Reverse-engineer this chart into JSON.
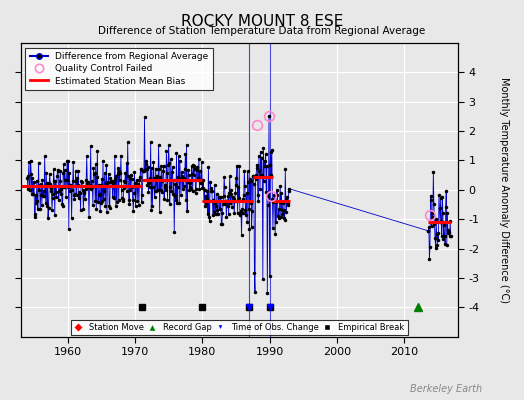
{
  "title": "ROCKY MOUNT 8 ESE",
  "subtitle": "Difference of Station Temperature Data from Regional Average",
  "ylabel": "Monthly Temperature Anomaly Difference (°C)",
  "xlim": [
    1953,
    2018
  ],
  "ylim": [
    -5,
    5
  ],
  "yticks": [
    -4,
    -3,
    -2,
    -1,
    0,
    1,
    2,
    3,
    4
  ],
  "xticks": [
    1960,
    1970,
    1980,
    1990,
    2000,
    2010
  ],
  "bg_color": "#e8e8e8",
  "plot_bg_color": "#e8e8e8",
  "grid_color": "#ffffff",
  "line_color": "#0000cc",
  "dot_color": "#000000",
  "bias_color": "#ff0000",
  "qc_color": "#ff88cc",
  "watermark": "Berkeley Earth",
  "segments": [
    {
      "x_start": 1953.0,
      "x_end": 1971.0,
      "bias": 0.12
    },
    {
      "x_start": 1971.0,
      "x_end": 1980.0,
      "bias": 0.35
    },
    {
      "x_start": 1980.0,
      "x_end": 1987.5,
      "bias": -0.38
    },
    {
      "x_start": 1987.5,
      "x_end": 1990.5,
      "bias": 0.45
    },
    {
      "x_start": 1990.5,
      "x_end": 1993.0,
      "bias": -0.38
    },
    {
      "x_start": 2013.5,
      "x_end": 2017.0,
      "bias": -1.1
    }
  ],
  "empirical_breaks": [
    1971,
    1980,
    1987,
    1990
  ],
  "record_gaps": [
    2012
  ],
  "time_of_obs_changes": [
    1987,
    1990
  ],
  "station_moves": [],
  "data_gaps": [
    [
      1993.5,
      2013.0
    ]
  ],
  "seed": 42,
  "noise_scale": 0.55,
  "seasonal_amp": 0.35,
  "start_year": 1954,
  "end_year": 2017
}
